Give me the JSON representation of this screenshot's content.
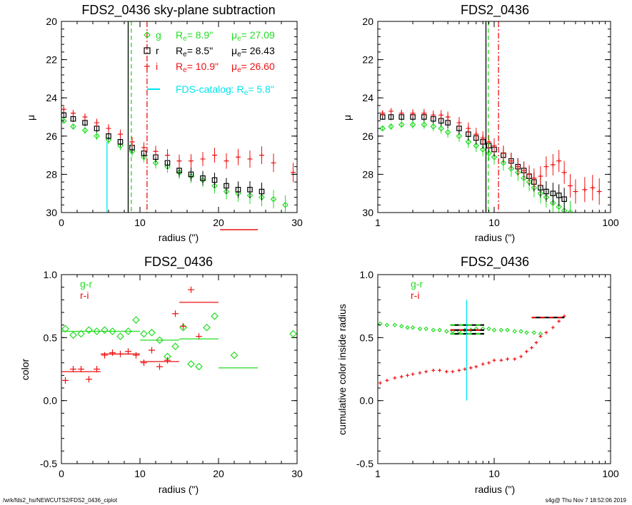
{
  "colors": {
    "g": "#22dd22",
    "r": "#000000",
    "i": "#ee1111",
    "cyan": "#00e5ee"
  },
  "footer": {
    "left": "/wrk/fds2_hs/NEWCUTS2/FDS2_0436_ciplot",
    "right": "s4g@  Thu Nov  7 18:52:06 2019"
  },
  "chart_data": [
    {
      "type": "scatter",
      "title": "FDS2_0436 sky-plane subtraction",
      "xlabel": "radius (\")",
      "ylabel": "μ",
      "xlim": [
        0,
        30
      ],
      "ylim": [
        30,
        20
      ],
      "xticks": [
        "0",
        "10",
        "20",
        "30"
      ],
      "yticks": [
        "20",
        "22",
        "24",
        "26",
        "28",
        "30"
      ],
      "legend": {
        "rows": [
          {
            "band": "g",
            "re_label": "R",
            "re_sub": "e",
            "re_value": "=  8.9\"",
            "mu_label": "μ",
            "mu_sub": "e",
            "mu_value": "= 27.09"
          },
          {
            "band": "r",
            "re_label": "R",
            "re_sub": "e",
            "re_value": "=  8.5\"",
            "mu_label": "μ",
            "mu_sub": "e",
            "mu_value": "= 26.43"
          },
          {
            "band": "i",
            "re_label": "R",
            "re_sub": "e",
            "re_value": "= 10.9\"",
            "mu_label": "μ",
            "mu_sub": "e",
            "mu_value": "= 26.60"
          }
        ],
        "catalog": {
          "text": "FDS-catalog: R",
          "sub": "e",
          "value": "=  5.8\""
        }
      },
      "vlines": {
        "g": 8.9,
        "r": 8.5,
        "i": 10.9,
        "catalog": 5.8
      },
      "sky_segment_i": [
        20.2,
        25.0
      ],
      "series": [
        {
          "name": "g",
          "x": [
            0.3,
            1.5,
            3,
            4.5,
            6,
            7.5,
            9,
            10.5,
            12,
            13.5,
            15,
            16.5,
            18,
            19.5,
            21,
            22.5,
            24,
            25.5,
            27,
            28.5
          ],
          "y": [
            25.2,
            25.5,
            25.7,
            26.0,
            26.2,
            26.5,
            26.8,
            27.1,
            27.4,
            27.6,
            27.9,
            28.1,
            28.3,
            28.6,
            28.9,
            29.0,
            29.1,
            29.2,
            29.3,
            29.6
          ]
        },
        {
          "name": "r",
          "x": [
            0.3,
            1.5,
            3,
            4.5,
            6,
            7.5,
            9,
            10.5,
            12,
            13.5,
            15,
            16.5,
            18,
            19.5,
            21,
            22.5,
            24,
            25.5
          ],
          "y": [
            24.9,
            25.1,
            25.3,
            25.6,
            26.0,
            26.3,
            26.6,
            26.9,
            27.1,
            27.4,
            27.8,
            28.0,
            28.2,
            28.3,
            28.6,
            28.8,
            28.8,
            28.9
          ]
        },
        {
          "name": "i",
          "x": [
            0.3,
            1.5,
            3,
            4.5,
            6,
            7.5,
            9,
            10.5,
            12,
            13.5,
            15,
            16.5,
            18,
            19.5,
            21,
            22.5,
            24,
            25.5,
            27,
            29.5
          ],
          "y": [
            24.6,
            24.8,
            25.0,
            25.3,
            25.6,
            25.9,
            26.3,
            26.6,
            26.8,
            27.0,
            27.3,
            27.3,
            27.2,
            27.0,
            27.3,
            27.1,
            27.2,
            27.0,
            27.4,
            27.9
          ]
        }
      ]
    },
    {
      "type": "scatter",
      "title": "FDS2_0436",
      "xlabel": "radius (\")",
      "ylabel": "μ",
      "xscale": "log",
      "xlim": [
        1,
        100
      ],
      "ylim": [
        30,
        20
      ],
      "xticks": [
        "1",
        "10",
        "100"
      ],
      "yticks": [
        "20",
        "22",
        "24",
        "26",
        "28",
        "30"
      ],
      "vlines": {
        "g": 8.9,
        "r": 8.5,
        "i": 10.9
      },
      "series": [
        {
          "name": "g",
          "x": [
            1.1,
            1.3,
            1.6,
            2,
            2.5,
            3,
            3.5,
            4,
            5,
            6,
            7,
            8,
            9,
            10,
            12,
            14,
            16,
            18,
            20,
            22,
            25,
            28,
            32,
            36,
            40,
            45
          ],
          "y": [
            25.6,
            25.5,
            25.4,
            25.4,
            25.4,
            25.5,
            25.6,
            25.8,
            26.0,
            26.3,
            26.5,
            26.7,
            26.9,
            27.1,
            27.4,
            27.7,
            27.9,
            28.2,
            28.4,
            28.7,
            29.0,
            29.2,
            29.5,
            29.7,
            29.9,
            30.0
          ]
        },
        {
          "name": "r",
          "x": [
            1.1,
            1.3,
            1.6,
            2,
            2.5,
            3,
            3.5,
            4,
            5,
            6,
            7,
            8,
            9,
            10,
            12,
            14,
            16,
            18,
            20,
            22,
            25,
            28,
            32,
            36,
            40
          ],
          "y": [
            25.0,
            25.0,
            25.0,
            25.0,
            25.0,
            25.1,
            25.2,
            25.3,
            25.6,
            25.9,
            26.1,
            26.3,
            26.5,
            26.7,
            27.0,
            27.3,
            27.6,
            27.8,
            28.1,
            28.4,
            28.7,
            28.9,
            29.0,
            29.1,
            29.3
          ]
        },
        {
          "name": "i",
          "x": [
            1.1,
            1.3,
            1.6,
            2,
            2.5,
            3,
            3.5,
            4,
            5,
            6,
            7,
            8,
            9,
            10,
            12,
            14,
            16,
            18,
            20,
            22,
            25,
            28,
            32,
            36,
            40,
            45,
            50,
            60,
            70,
            80
          ],
          "y": [
            24.8,
            24.7,
            24.8,
            24.8,
            24.8,
            24.9,
            24.9,
            25.0,
            25.3,
            25.6,
            25.9,
            26.1,
            26.3,
            26.5,
            26.9,
            27.3,
            27.6,
            27.8,
            28.0,
            28.2,
            28.1,
            27.6,
            27.5,
            27.3,
            27.9,
            28.6,
            28.9,
            28.8,
            28.7,
            28.9
          ]
        }
      ]
    },
    {
      "type": "scatter",
      "title": "FDS2_0436",
      "xlabel": "radius (\")",
      "ylabel": "color",
      "xlim": [
        0,
        30
      ],
      "ylim": [
        -0.5,
        1.0
      ],
      "xticks": [
        "0",
        "10",
        "20",
        "30"
      ],
      "yticks": [
        "-0.5",
        "0.0",
        "0.5",
        "1.0"
      ],
      "legend": {
        "rows": [
          "g-r",
          "r-i"
        ]
      },
      "series": [
        {
          "name": "g-r",
          "x": [
            0.5,
            1.5,
            2.5,
            3.5,
            4.5,
            5.5,
            6.5,
            7.5,
            8.5,
            9.5,
            10.5,
            11.5,
            12.5,
            13.5,
            14.5,
            15.5,
            16.5,
            17.5,
            18.5,
            19.5,
            22,
            29.5
          ],
          "y": [
            0.57,
            0.52,
            0.53,
            0.56,
            0.55,
            0.56,
            0.55,
            0.51,
            0.55,
            0.64,
            0.53,
            0.54,
            0.48,
            0.35,
            0.43,
            0.58,
            0.29,
            0.27,
            0.58,
            0.67,
            0.36,
            0.53
          ]
        },
        {
          "name": "r-i",
          "x": [
            0.5,
            1.5,
            2.5,
            3.5,
            4.5,
            5.5,
            6.5,
            7.5,
            8.5,
            9.5,
            10.5,
            11.5,
            12.5,
            13.5,
            14.5,
            15.5,
            16.5,
            17.5
          ],
          "y": [
            0.16,
            0.25,
            0.25,
            0.17,
            0.25,
            0.36,
            0.38,
            0.37,
            0.39,
            0.36,
            0.3,
            0.4,
            0.27,
            0.32,
            0.69,
            0.59,
            0.88,
            0.51
          ]
        }
      ],
      "bins": {
        "g-r": [
          [
            0,
            5,
            0.55
          ],
          [
            5,
            10,
            0.55
          ],
          [
            10,
            15,
            0.48
          ],
          [
            15,
            20,
            0.49
          ],
          [
            20,
            25,
            0.26
          ]
        ],
        "r-i": [
          [
            0,
            5,
            0.23
          ],
          [
            5,
            10,
            0.37
          ],
          [
            10,
            15,
            0.31
          ],
          [
            15,
            20,
            0.78
          ]
        ]
      }
    },
    {
      "type": "scatter",
      "title": "FDS2_0436",
      "xlabel": "radius (\")",
      "ylabel": "cumulative color inside radius",
      "xscale": "log",
      "xlim": [
        1,
        100
      ],
      "ylim": [
        -0.5,
        1.0
      ],
      "xticks": [
        "1",
        "10",
        "100"
      ],
      "yticks": [
        "-0.5",
        "0.0",
        "0.5",
        "1.0"
      ],
      "legend": {
        "rows": [
          "g-r",
          "r-i"
        ]
      },
      "vline_catalog": 5.8,
      "series": [
        {
          "name": "g-r",
          "x": [
            1.05,
            1.2,
            1.4,
            1.6,
            1.8,
            2,
            2.3,
            2.6,
            3,
            3.4,
            3.9,
            4.4,
            5,
            5.6,
            6.3,
            7,
            8,
            9,
            10,
            11.5,
            13,
            15,
            17,
            19,
            22,
            25
          ],
          "y": [
            0.61,
            0.6,
            0.6,
            0.59,
            0.58,
            0.58,
            0.57,
            0.57,
            0.56,
            0.56,
            0.55,
            0.55,
            0.55,
            0.56,
            0.56,
            0.57,
            0.57,
            0.57,
            0.56,
            0.56,
            0.56,
            0.55,
            0.55,
            0.54,
            0.54,
            0.53
          ]
        },
        {
          "name": "r-i",
          "x": [
            1.05,
            1.2,
            1.4,
            1.6,
            1.8,
            2,
            2.3,
            2.6,
            3,
            3.4,
            3.9,
            4.4,
            5,
            5.6,
            6.3,
            7,
            8,
            9,
            10,
            11.5,
            13,
            15,
            17,
            19,
            21,
            23,
            25,
            28,
            32,
            36,
            40
          ],
          "y": [
            0.14,
            0.16,
            0.18,
            0.19,
            0.2,
            0.21,
            0.22,
            0.23,
            0.24,
            0.24,
            0.23,
            0.23,
            0.24,
            0.25,
            0.26,
            0.27,
            0.29,
            0.3,
            0.32,
            0.32,
            0.33,
            0.33,
            0.35,
            0.39,
            0.42,
            0.46,
            0.51,
            0.54,
            0.58,
            0.63,
            0.67
          ]
        }
      ],
      "ref_bars": {
        "g-r": [
          [
            4.2,
            8.2,
            0.6
          ],
          [
            4.2,
            8.2,
            0.53
          ],
          [
            21,
            40,
            0.66
          ]
        ],
        "r-i": [
          [
            4.2,
            8.2,
            0.56
          ],
          [
            21,
            40,
            0.66
          ]
        ]
      }
    }
  ]
}
